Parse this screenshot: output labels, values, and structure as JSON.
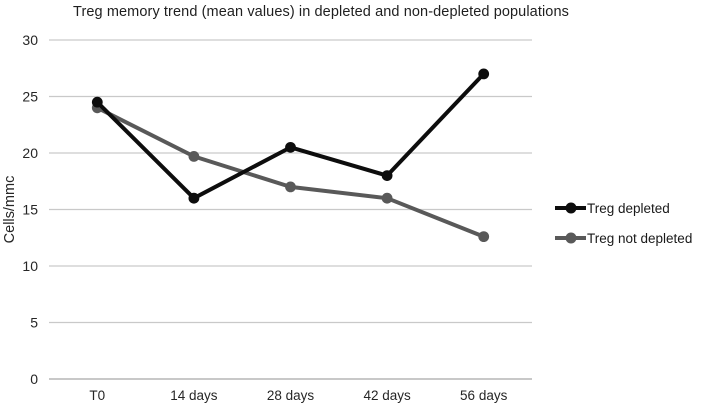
{
  "chart_data": {
    "type": "line",
    "title": "Treg memory trend (mean values) in depleted and non-depleted populations",
    "xlabel": "",
    "ylabel": "Cells/mmc",
    "categories": [
      "T0",
      "14 days",
      "28 days",
      "42 days",
      "56 days"
    ],
    "series": [
      {
        "name": "Treg depleted",
        "color": "#0d0d0d",
        "values": [
          24.5,
          16,
          20.5,
          18,
          27
        ]
      },
      {
        "name": "Treg not depleted",
        "color": "#595959",
        "values": [
          24,
          19.7,
          17,
          16,
          12.6
        ]
      }
    ],
    "ylim": [
      0,
      30
    ],
    "yticks": [
      0,
      5,
      10,
      15,
      20,
      25,
      30
    ],
    "grid": true,
    "gridline_color": "#c9c9c9",
    "axisline_color": "#a6a6a6",
    "tick_label_color": "#262626",
    "legend_position": "right"
  }
}
